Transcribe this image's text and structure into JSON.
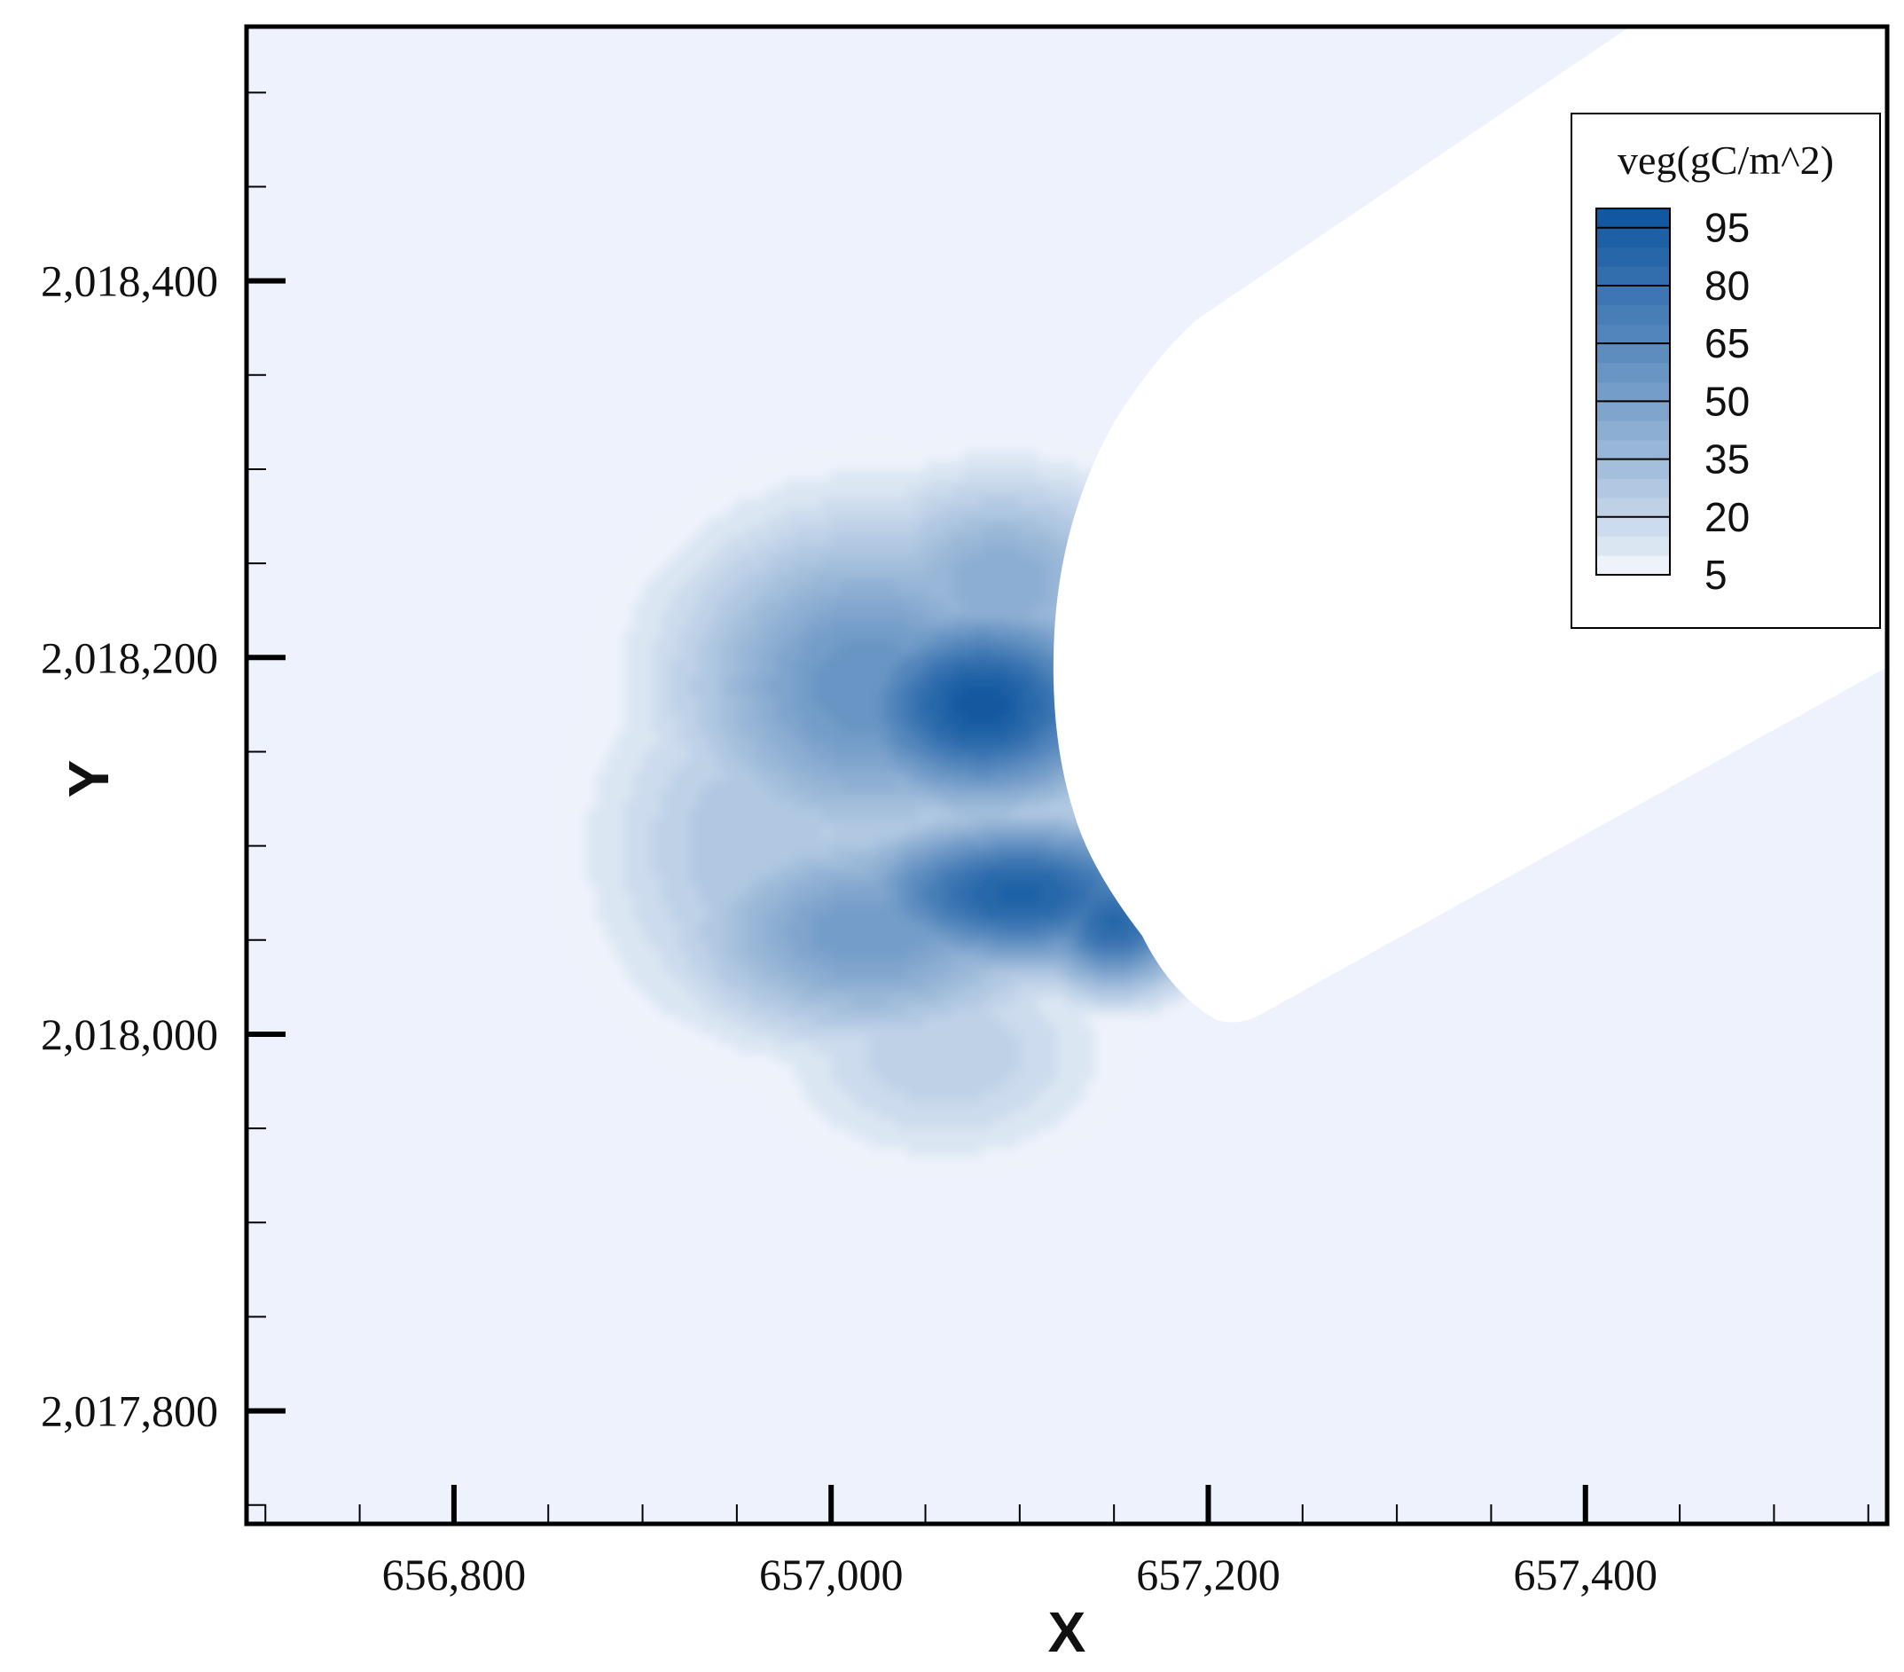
{
  "chart_data": {
    "type": "heatmap",
    "title": "",
    "xlabel": "X",
    "ylabel": "Y",
    "xlim": [
      656690,
      657560
    ],
    "ylim": [
      2017740,
      2018535
    ],
    "x_ticks": [
      {
        "value": 656800,
        "label": "656,800"
      },
      {
        "value": 657000,
        "label": "657,000"
      },
      {
        "value": 657200,
        "label": "657,200"
      },
      {
        "value": 657400,
        "label": "657,400"
      }
    ],
    "y_ticks": [
      {
        "value": 2017800,
        "label": "2,017,800"
      },
      {
        "value": 2018000,
        "label": "2,018,000"
      },
      {
        "value": 2018200,
        "label": "2,018,200"
      },
      {
        "value": 2018400,
        "label": "2,018,400"
      }
    ],
    "grid": false,
    "legend": {
      "title": "veg(gC/m^2)",
      "position": "top-right",
      "levels": [
        {
          "value": 95,
          "label": "95"
        },
        {
          "value": 80,
          "label": "80"
        },
        {
          "value": 65,
          "label": "65"
        },
        {
          "value": 50,
          "label": "50"
        },
        {
          "value": 35,
          "label": "35"
        },
        {
          "value": 20,
          "label": "20"
        },
        {
          "value": 5,
          "label": "5"
        }
      ]
    },
    "colors": {
      "background_field": "#eef2fd",
      "low": "#eef3fb",
      "high": "#08519c",
      "no_data": "#ffffff"
    },
    "colormap": "Blues",
    "value_range": [
      5,
      100
    ],
    "no_data_region": "white channel crossing the domain toward the upper-right",
    "hotspots": [
      {
        "name": "upper cluster",
        "x": 657080,
        "y": 2018175,
        "peak": 98,
        "sx": 55,
        "sy": 38
      },
      {
        "name": "upper cluster shoulder",
        "x": 657020,
        "y": 2018185,
        "peak": 60,
        "sx": 70,
        "sy": 60
      },
      {
        "name": "upper cluster top",
        "x": 657090,
        "y": 2018240,
        "peak": 45,
        "sx": 55,
        "sy": 40
      },
      {
        "name": "lower cluster",
        "x": 657100,
        "y": 2018075,
        "peak": 92,
        "sx": 65,
        "sy": 28
      },
      {
        "name": "lower cluster west",
        "x": 657020,
        "y": 2018055,
        "peak": 55,
        "sx": 70,
        "sy": 40
      },
      {
        "name": "west fringe",
        "x": 656960,
        "y": 2018100,
        "peak": 30,
        "sx": 60,
        "sy": 70
      },
      {
        "name": "south fringe",
        "x": 657060,
        "y": 2017990,
        "peak": 25,
        "sx": 60,
        "sy": 40
      },
      {
        "name": "channel edge",
        "x": 657150,
        "y": 2018060,
        "peak": 88,
        "sx": 30,
        "sy": 25
      }
    ]
  }
}
